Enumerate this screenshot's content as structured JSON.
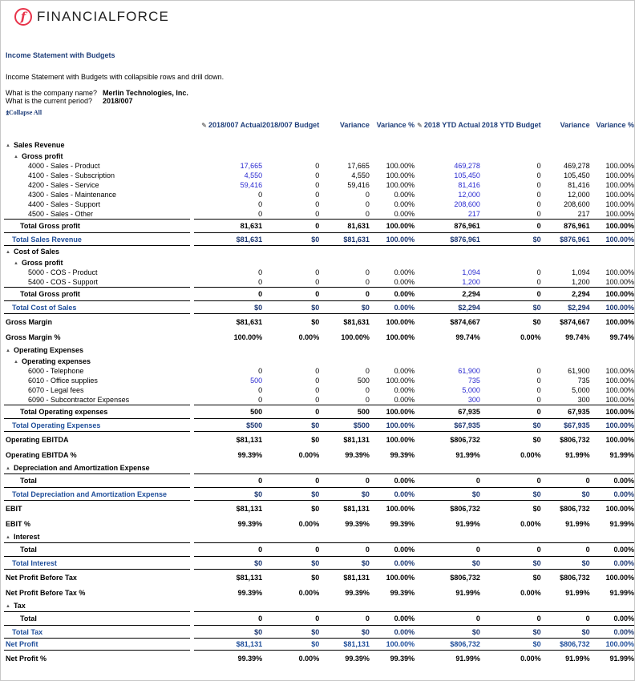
{
  "brand": {
    "name": "FINANCIALFORCE",
    "mark": "f"
  },
  "report": {
    "title": "Income Statement with Budgets",
    "description": "Income Statement with Budgets with collapsible rows and drill down.",
    "questions": [
      {
        "q": "What is the company name?",
        "a": "Merlin Technologies, Inc."
      },
      {
        "q": "What is the current period?",
        "a": "2018/007"
      }
    ],
    "collapse_all": "Collapse All"
  },
  "columns": [
    "2018/007 Actual",
    "2018/007 Budget",
    "Variance",
    "Variance %",
    "2018 YTD Actual",
    "2018 YTD Budget",
    "Variance",
    "Variance %"
  ],
  "rows": [
    {
      "type": "section",
      "label": "Sales Revenue"
    },
    {
      "type": "sub",
      "label": "Gross profit"
    },
    {
      "type": "detail",
      "label": "4000 - Sales - Product",
      "values": [
        "17,665",
        "0",
        "17,665",
        "100.00%",
        "469,278",
        "0",
        "469,278",
        "100.00%"
      ]
    },
    {
      "type": "detail",
      "label": "4100 - Sales - Subscription",
      "values": [
        "4,550",
        "0",
        "4,550",
        "100.00%",
        "105,450",
        "0",
        "105,450",
        "100.00%"
      ]
    },
    {
      "type": "detail",
      "label": "4200 - Sales - Service",
      "values": [
        "59,416",
        "0",
        "59,416",
        "100.00%",
        "81,416",
        "0",
        "81,416",
        "100.00%"
      ]
    },
    {
      "type": "detail",
      "label": "4300 - Sales - Maintenance",
      "values": [
        "0",
        "0",
        "0",
        "0.00%",
        "12,000",
        "0",
        "12,000",
        "100.00%"
      ]
    },
    {
      "type": "detail",
      "label": "4400 - Sales - Support",
      "values": [
        "0",
        "0",
        "0",
        "0.00%",
        "208,600",
        "0",
        "208,600",
        "100.00%"
      ]
    },
    {
      "type": "detail",
      "label": "4500 - Sales - Other",
      "values": [
        "0",
        "0",
        "0",
        "0.00%",
        "217",
        "0",
        "217",
        "100.00%"
      ]
    },
    {
      "type": "subtotal",
      "label": "Total Gross profit",
      "values": [
        "81,631",
        "0",
        "81,631",
        "100.00%",
        "876,961",
        "0",
        "876,961",
        "100.00%"
      ]
    },
    {
      "type": "sectotal",
      "label": "Total Sales Revenue",
      "values": [
        "$81,631",
        "$0",
        "$81,631",
        "100.00%",
        "$876,961",
        "$0",
        "$876,961",
        "100.00%"
      ]
    },
    {
      "type": "section",
      "label": "Cost of Sales"
    },
    {
      "type": "sub",
      "label": "Gross profit"
    },
    {
      "type": "detail",
      "label": "5000 - COS - Product",
      "values": [
        "0",
        "0",
        "0",
        "0.00%",
        "1,094",
        "0",
        "1,094",
        "100.00%"
      ]
    },
    {
      "type": "detail",
      "label": "5400 - COS - Support",
      "values": [
        "0",
        "0",
        "0",
        "0.00%",
        "1,200",
        "0",
        "1,200",
        "100.00%"
      ]
    },
    {
      "type": "subtotal",
      "label": "Total Gross profit",
      "values": [
        "0",
        "0",
        "0",
        "0.00%",
        "2,294",
        "0",
        "2,294",
        "100.00%"
      ]
    },
    {
      "type": "sectotal",
      "label": "Total Cost of Sales",
      "values": [
        "$0",
        "$0",
        "$0",
        "0.00%",
        "$2,294",
        "$0",
        "$2,294",
        "100.00%"
      ]
    },
    {
      "type": "summary",
      "label": "Gross Margin",
      "values": [
        "$81,631",
        "$0",
        "$81,631",
        "100.00%",
        "$874,667",
        "$0",
        "$874,667",
        "100.00%"
      ]
    },
    {
      "type": "summary",
      "label": "Gross Margin %",
      "values": [
        "100.00%",
        "0.00%",
        "100.00%",
        "100.00%",
        "99.74%",
        "0.00%",
        "99.74%",
        "99.74%"
      ]
    },
    {
      "type": "section",
      "label": "Operating Expenses"
    },
    {
      "type": "sub",
      "label": "Operating expenses"
    },
    {
      "type": "detail",
      "label": "6000 - Telephone",
      "values": [
        "0",
        "0",
        "0",
        "0.00%",
        "61,900",
        "0",
        "61,900",
        "100.00%"
      ]
    },
    {
      "type": "detail",
      "label": "6010 - Office supplies",
      "values": [
        "500",
        "0",
        "500",
        "100.00%",
        "735",
        "0",
        "735",
        "100.00%"
      ]
    },
    {
      "type": "detail",
      "label": "6070 - Legal fees",
      "values": [
        "0",
        "0",
        "0",
        "0.00%",
        "5,000",
        "0",
        "5,000",
        "100.00%"
      ]
    },
    {
      "type": "detail",
      "label": "6090 - Subcontractor Expenses",
      "values": [
        "0",
        "0",
        "0",
        "0.00%",
        "300",
        "0",
        "300",
        "100.00%"
      ]
    },
    {
      "type": "subtotal",
      "label": "Total Operating expenses",
      "values": [
        "500",
        "0",
        "500",
        "100.00%",
        "67,935",
        "0",
        "67,935",
        "100.00%"
      ]
    },
    {
      "type": "sectotal",
      "label": "Total Operating Expenses",
      "values": [
        "$500",
        "$0",
        "$500",
        "100.00%",
        "$67,935",
        "$0",
        "$67,935",
        "100.00%"
      ]
    },
    {
      "type": "summary",
      "label": "Operating EBITDA",
      "values": [
        "$81,131",
        "$0",
        "$81,131",
        "100.00%",
        "$806,732",
        "$0",
        "$806,732",
        "100.00%"
      ]
    },
    {
      "type": "summary",
      "label": "Operating EBITDA %",
      "values": [
        "99.39%",
        "0.00%",
        "99.39%",
        "99.39%",
        "91.99%",
        "0.00%",
        "91.99%",
        "91.99%"
      ]
    },
    {
      "type": "section",
      "label": "Depreciation and Amortization Expense"
    },
    {
      "type": "subtotal",
      "label": "Total",
      "values": [
        "0",
        "0",
        "0",
        "0.00%",
        "0",
        "0",
        "0",
        "0.00%"
      ]
    },
    {
      "type": "sectotal",
      "label": "Total Depreciation and Amortization Expense",
      "values": [
        "$0",
        "$0",
        "$0",
        "0.00%",
        "$0",
        "$0",
        "$0",
        "0.00%"
      ]
    },
    {
      "type": "summary",
      "label": "EBIT",
      "values": [
        "$81,131",
        "$0",
        "$81,131",
        "100.00%",
        "$806,732",
        "$0",
        "$806,732",
        "100.00%"
      ]
    },
    {
      "type": "summary",
      "label": "EBIT %",
      "values": [
        "99.39%",
        "0.00%",
        "99.39%",
        "99.39%",
        "91.99%",
        "0.00%",
        "91.99%",
        "91.99%"
      ]
    },
    {
      "type": "section",
      "label": "Interest"
    },
    {
      "type": "subtotal",
      "label": "Total",
      "values": [
        "0",
        "0",
        "0",
        "0.00%",
        "0",
        "0",
        "0",
        "0.00%"
      ]
    },
    {
      "type": "sectotal",
      "label": "Total Interest",
      "values": [
        "$0",
        "$0",
        "$0",
        "0.00%",
        "$0",
        "$0",
        "$0",
        "0.00%"
      ]
    },
    {
      "type": "summary",
      "label": "Net Profit Before Tax",
      "values": [
        "$81,131",
        "$0",
        "$81,131",
        "100.00%",
        "$806,732",
        "$0",
        "$806,732",
        "100.00%"
      ]
    },
    {
      "type": "summary",
      "label": "Net Profit Before Tax %",
      "values": [
        "99.39%",
        "0.00%",
        "99.39%",
        "99.39%",
        "91.99%",
        "0.00%",
        "91.99%",
        "91.99%"
      ]
    },
    {
      "type": "section",
      "label": "Tax"
    },
    {
      "type": "subtotal",
      "label": "Total",
      "values": [
        "0",
        "0",
        "0",
        "0.00%",
        "0",
        "0",
        "0",
        "0.00%"
      ]
    },
    {
      "type": "sectotal",
      "label": "Total Tax",
      "values": [
        "$0",
        "$0",
        "$0",
        "0.00%",
        "$0",
        "$0",
        "$0",
        "0.00%"
      ]
    },
    {
      "type": "net",
      "label": "Net Profit",
      "values": [
        "$81,131",
        "$0",
        "$81,131",
        "100.00%",
        "$806,732",
        "$0",
        "$806,732",
        "100.00%"
      ]
    },
    {
      "type": "summary",
      "label": "Net Profit %",
      "values": [
        "99.39%",
        "0.00%",
        "99.39%",
        "99.39%",
        "91.99%",
        "0.00%",
        "91.99%",
        "91.99%"
      ]
    }
  ],
  "colors": {
    "brand": "#e8334a",
    "header": "#1f3e7a",
    "drilldown": "#2a2ad0",
    "total_label": "#1f4e9a"
  }
}
